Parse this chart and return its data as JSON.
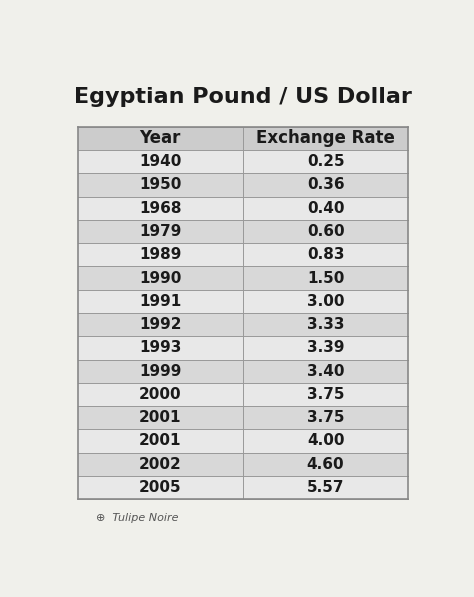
{
  "title": "Egyptian Pound / US Dollar",
  "col_headers": [
    "Year",
    "Exchange Rate"
  ],
  "rows": [
    [
      "1940",
      "0.25"
    ],
    [
      "1950",
      "0.36"
    ],
    [
      "1968",
      "0.40"
    ],
    [
      "1979",
      "0.60"
    ],
    [
      "1989",
      "0.83"
    ],
    [
      "1990",
      "1.50"
    ],
    [
      "1991",
      "3.00"
    ],
    [
      "1992",
      "3.33"
    ],
    [
      "1993",
      "3.39"
    ],
    [
      "1999",
      "3.40"
    ],
    [
      "2000",
      "3.75"
    ],
    [
      "2001",
      "3.75"
    ],
    [
      "2001",
      "4.00"
    ],
    [
      "2002",
      "4.60"
    ],
    [
      "2005",
      "5.57"
    ]
  ],
  "header_bg": "#cccccc",
  "row_bg_odd": "#e8e8e8",
  "row_bg_even": "#d8d8d8",
  "bg_color": "#f0f0eb",
  "title_fontsize": 16,
  "header_fontsize": 12,
  "cell_fontsize": 11,
  "watermark": "Tulipe Noire",
  "text_color": "#1a1a1a",
  "border_color": "#999999",
  "table_border_color": "#888888"
}
